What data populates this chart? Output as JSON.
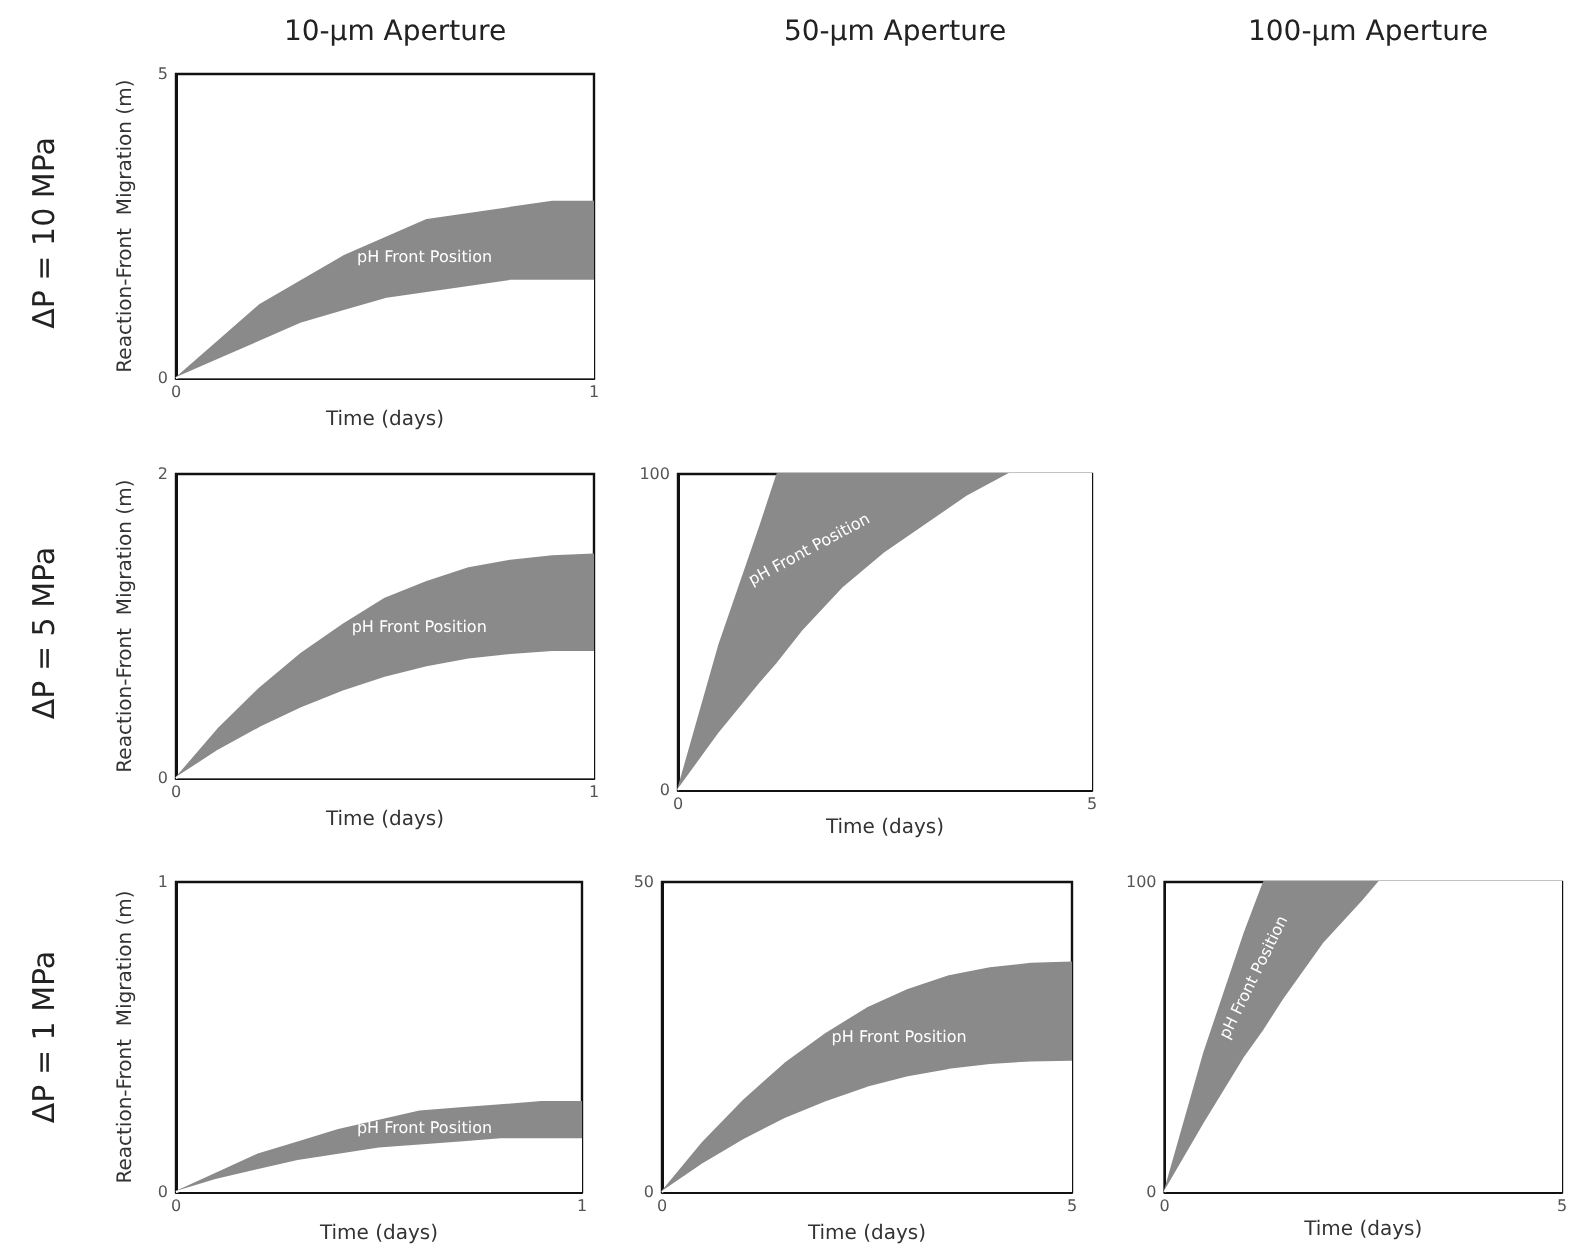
{
  "chart_data": [
    {
      "type": "area",
      "title": "10-µm Aperture",
      "xlabel": "Time (days)",
      "ylabel": "Reaction-Front  Migration (m)",
      "xlim": [
        0,
        1
      ],
      "ylim": [
        0,
        5
      ],
      "xticks": [
        0,
        1
      ],
      "yticks": [
        0,
        5
      ],
      "grid": false,
      "x": [
        0,
        0.1,
        0.2,
        0.3,
        0.4,
        0.5,
        0.6,
        0.7,
        0.8,
        0.9,
        1
      ],
      "series": [
        {
          "color": "#8a8a8a",
          "values": [
            0,
            0.6,
            1.2,
            1.6,
            2.0,
            2.3,
            2.6,
            2.7,
            2.8,
            2.9,
            2.9
          ]
        },
        {
          "color": "#ffffff",
          "values": [
            0,
            0.3,
            0.6,
            0.9,
            1.1,
            1.3,
            1.4,
            1.5,
            1.6,
            1.6,
            1.6
          ]
        }
      ],
      "annotations": [
        "ΔP = 10 MPa",
        "pH Front Position"
      ]
    },
    {
      "type": "area",
      "xlabel": "Time (days)",
      "ylabel": "Reaction-Front  Migration (m)",
      "xlim": [
        0,
        1
      ],
      "ylim": [
        0,
        2
      ],
      "xticks": [
        0,
        1
      ],
      "yticks": [
        0,
        2
      ],
      "grid": false,
      "x": [
        0,
        0.1,
        0.2,
        0.3,
        0.4,
        0.5,
        0.6,
        0.7,
        0.8,
        0.9,
        1
      ],
      "series": [
        {
          "color": "#8a8a8a",
          "values": [
            0,
            0.32,
            0.59,
            0.82,
            1.01,
            1.18,
            1.29,
            1.38,
            1.43,
            1.46,
            1.47
          ]
        },
        {
          "color": "#ffffff",
          "values": [
            0,
            0.18,
            0.33,
            0.46,
            0.57,
            0.66,
            0.73,
            0.78,
            0.81,
            0.83,
            0.83
          ]
        }
      ],
      "annotations": [
        "ΔP = 5 MPa",
        "pH Front Position"
      ]
    },
    {
      "type": "area",
      "title": "50-µm Aperture",
      "xlabel": "Time (days)",
      "xlim": [
        0,
        5
      ],
      "ylim": [
        0,
        100
      ],
      "xticks": [
        0,
        5
      ],
      "yticks": [
        0,
        100
      ],
      "grid": false,
      "x": [
        0,
        0.5,
        1,
        1.2,
        1.5,
        2,
        2.5,
        3,
        3.5,
        4,
        5
      ],
      "series": [
        {
          "color": "#8a8a8a",
          "values": [
            0,
            46,
            84,
            100,
            100,
            100,
            100,
            100,
            100,
            100,
            null
          ]
        },
        {
          "color": "#ffffff",
          "values": [
            0,
            18,
            34,
            40,
            50,
            64,
            75,
            84,
            93,
            100,
            100
          ]
        }
      ],
      "annotations": [
        "pH Front Position"
      ]
    },
    {
      "type": "area",
      "xlabel": "Time (days)",
      "ylabel": "Reaction-Front  Migration (m)",
      "xlim": [
        0,
        1
      ],
      "ylim": [
        0,
        1
      ],
      "xticks": [
        0,
        1
      ],
      "yticks": [
        0,
        1
      ],
      "grid": false,
      "x": [
        0,
        0.1,
        0.2,
        0.3,
        0.4,
        0.5,
        0.6,
        0.7,
        0.8,
        0.9,
        1
      ],
      "series": [
        {
          "color": "#8a8a8a",
          "values": [
            0,
            0.06,
            0.12,
            0.16,
            0.2,
            0.23,
            0.26,
            0.27,
            0.28,
            0.29,
            0.29
          ]
        },
        {
          "color": "#ffffff",
          "values": [
            0,
            0.04,
            0.07,
            0.1,
            0.12,
            0.14,
            0.15,
            0.16,
            0.17,
            0.17,
            0.17
          ]
        }
      ],
      "annotations": [
        "ΔP = 1 MPa",
        "pH Front Position"
      ]
    },
    {
      "type": "area",
      "xlabel": "Time (days)",
      "xlim": [
        0,
        5
      ],
      "ylim": [
        0,
        50
      ],
      "xticks": [
        0,
        5
      ],
      "yticks": [
        0,
        50
      ],
      "grid": false,
      "x": [
        0,
        0.5,
        1,
        1.5,
        2,
        2.5,
        3,
        3.5,
        4,
        4.5,
        5
      ],
      "series": [
        {
          "color": "#8a8a8a",
          "values": [
            0,
            8,
            14.8,
            20.7,
            25.5,
            29.6,
            32.6,
            34.8,
            36.1,
            36.8,
            37
          ]
        },
        {
          "color": "#ffffff",
          "values": [
            0,
            4.5,
            8.4,
            11.8,
            14.5,
            16.8,
            18.5,
            19.7,
            20.5,
            20.9,
            21
          ]
        }
      ],
      "annotations": [
        "pH Front Position"
      ]
    },
    {
      "type": "area",
      "title": "100-µm Aperture",
      "xlabel": "Time (days)",
      "xlim": [
        0,
        5
      ],
      "ylim": [
        0,
        100
      ],
      "xticks": [
        0,
        5
      ],
      "yticks": [
        0,
        100
      ],
      "grid": false,
      "x": [
        0,
        0.5,
        1,
        1.25,
        1.5,
        2,
        2.5,
        2.7,
        5
      ],
      "series": [
        {
          "color": "#8a8a8a",
          "values": [
            0,
            45,
            83,
            100,
            100,
            100,
            100,
            100,
            null
          ]
        },
        {
          "color": "#ffffff",
          "values": [
            0,
            22,
            43,
            52,
            62,
            80,
            94,
            100,
            100
          ]
        }
      ],
      "annotations": [
        "pH Front Position"
      ]
    }
  ]
}
